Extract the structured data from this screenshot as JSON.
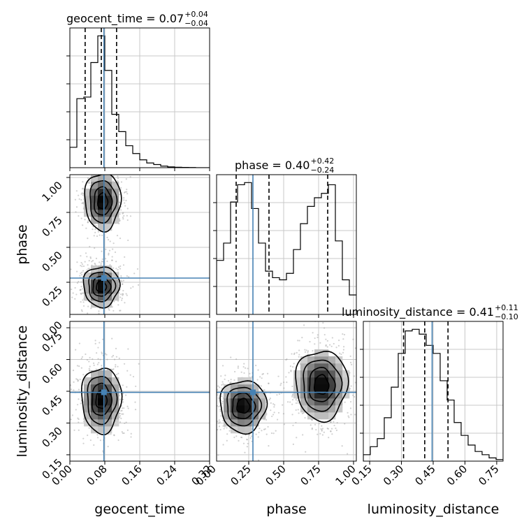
{
  "chart_data": {
    "type": "corner",
    "parameters": [
      {
        "name": "geocent_time",
        "range": [
          0.0,
          0.32
        ],
        "truth": 0.078
      },
      {
        "name": "phase",
        "range": [
          0.02,
          1.02
        ],
        "truth": 0.28
      },
      {
        "name": "luminosity_distance",
        "range": [
          0.12,
          0.78
        ],
        "truth": 0.445
      }
    ],
    "titles": [
      {
        "label": "geocent_time = 0.07",
        "plus": "+0.04",
        "minus": "−0.04"
      },
      {
        "label": "phase = 0.40",
        "plus": "+0.42",
        "minus": "−0.24"
      },
      {
        "label": "luminosity_distance = 0.41",
        "plus": "+0.11",
        "minus": "−0.10"
      }
    ],
    "quantiles": [
      [
        0.035,
        0.072,
        0.107
      ],
      [
        0.16,
        0.395,
        0.815
      ],
      [
        0.31,
        0.41,
        0.52
      ]
    ],
    "histograms": [
      {
        "bin_edges": [
          0.0,
          0.016,
          0.032,
          0.048,
          0.064,
          0.08,
          0.096,
          0.112,
          0.128,
          0.144,
          0.16,
          0.176,
          0.192,
          0.208,
          0.224,
          0.24,
          0.256,
          0.272,
          0.288,
          0.304,
          0.32
        ],
        "counts": [
          0.13,
          0.44,
          0.45,
          0.67,
          0.84,
          0.62,
          0.34,
          0.23,
          0.14,
          0.09,
          0.05,
          0.03,
          0.02,
          0.01,
          0.005,
          0.003,
          0.002,
          0.001,
          0.0,
          0.0
        ]
      },
      {
        "bin_edges": [
          0.02,
          0.07,
          0.12,
          0.17,
          0.22,
          0.27,
          0.32,
          0.37,
          0.42,
          0.47,
          0.52,
          0.57,
          0.62,
          0.67,
          0.72,
          0.77,
          0.82,
          0.87,
          0.92,
          0.97,
          1.02
        ],
        "counts": [
          0.25,
          0.33,
          0.52,
          0.6,
          0.61,
          0.49,
          0.33,
          0.2,
          0.17,
          0.16,
          0.19,
          0.3,
          0.42,
          0.5,
          0.54,
          0.56,
          0.6,
          0.34,
          0.16,
          0.09
        ]
      },
      {
        "bin_edges": [
          0.12,
          0.153,
          0.186,
          0.219,
          0.252,
          0.285,
          0.318,
          0.351,
          0.384,
          0.417,
          0.45,
          0.483,
          0.516,
          0.549,
          0.582,
          0.615,
          0.648,
          0.681,
          0.714,
          0.747,
          0.78
        ],
        "counts": [
          0.04,
          0.09,
          0.14,
          0.27,
          0.46,
          0.67,
          0.81,
          0.82,
          0.79,
          0.72,
          0.67,
          0.5,
          0.38,
          0.24,
          0.16,
          0.1,
          0.06,
          0.04,
          0.02,
          0.01
        ]
      }
    ],
    "pairs": [
      {
        "x": 0,
        "y": 1,
        "modes": [
          {
            "x": 0.075,
            "y": 0.83,
            "sx": 0.02,
            "sy": 0.1
          },
          {
            "x": 0.072,
            "y": 0.22,
            "sx": 0.02,
            "sy": 0.07
          }
        ]
      },
      {
        "x": 0,
        "y": 2,
        "modes": [
          {
            "x": 0.072,
            "y": 0.41,
            "sx": 0.022,
            "sy": 0.075
          }
        ]
      },
      {
        "x": 1,
        "y": 2,
        "modes": [
          {
            "x": 0.21,
            "y": 0.38,
            "sx": 0.08,
            "sy": 0.06
          },
          {
            "x": 0.77,
            "y": 0.48,
            "sx": 0.09,
            "sy": 0.08
          }
        ]
      }
    ],
    "ticks": [
      {
        "values": [
          0.0,
          0.08,
          0.16,
          0.24,
          0.32
        ],
        "labels": [
          "0.00",
          "0.08",
          "0.16",
          "0.24",
          "0.32"
        ]
      },
      {
        "values": [
          0.0,
          0.25,
          0.5,
          0.75,
          1.0
        ],
        "labels": [
          "0.00",
          "0.25",
          "0.50",
          "0.75",
          "1.00"
        ]
      },
      {
        "values": [
          0.15,
          0.3,
          0.45,
          0.6,
          0.75
        ],
        "labels": [
          "0.15",
          "0.30",
          "0.45",
          "0.60",
          "0.75"
        ]
      }
    ],
    "axis_labels": {
      "x": [
        "geocent_time",
        "phase",
        "luminosity_distance"
      ],
      "y": [
        "phase",
        "luminosity_distance"
      ]
    },
    "grid": true,
    "colors": {
      "truth": "#4682b4",
      "hist": "#000000",
      "grid": "#c8c8c8",
      "scatter": "#9a9a9a"
    }
  }
}
